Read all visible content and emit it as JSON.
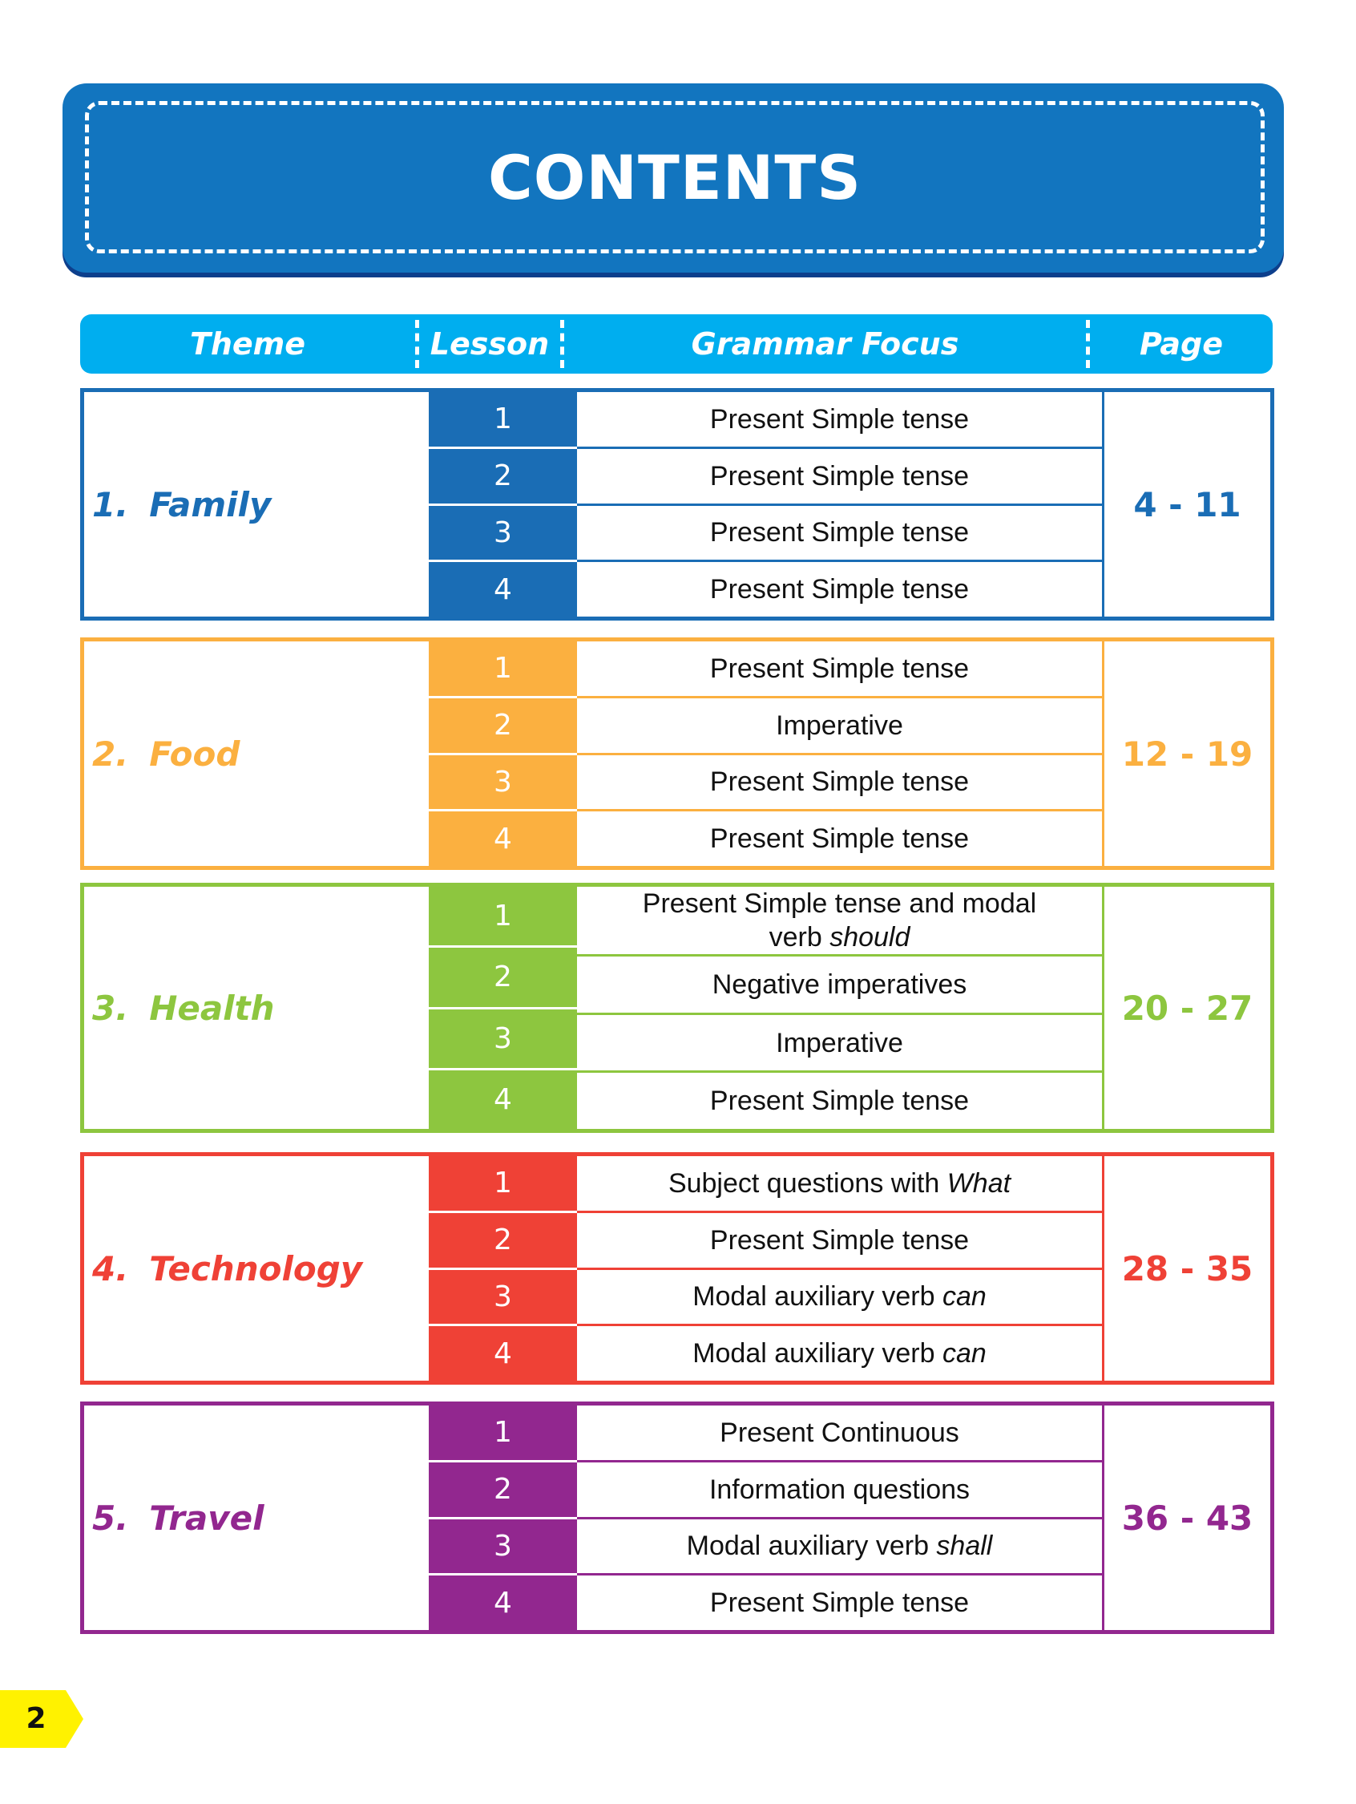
{
  "title": "CONTENTS",
  "columns": {
    "theme": "Theme",
    "lesson": "Lesson",
    "grammar": "Grammar Focus",
    "page": "Page"
  },
  "sections": [
    {
      "num": "1.",
      "theme": "Family",
      "color": "#1a6db5",
      "pages": "4 - 11",
      "lessons": [
        {
          "n": "1",
          "focus": "Present Simple tense"
        },
        {
          "n": "2",
          "focus": "Present Simple tense"
        },
        {
          "n": "3",
          "focus": "Present Simple tense"
        },
        {
          "n": "4",
          "focus": "Present Simple tense"
        }
      ]
    },
    {
      "num": "2.",
      "theme": "Food",
      "color": "#fbb040",
      "pages": "12 - 19",
      "lessons": [
        {
          "n": "1",
          "focus": "Present Simple tense"
        },
        {
          "n": "2",
          "focus": "Imperative"
        },
        {
          "n": "3",
          "focus": "Present Simple tense"
        },
        {
          "n": "4",
          "focus": "Present Simple tense"
        }
      ]
    },
    {
      "num": "3.",
      "theme": "Health",
      "color": "#8dc63f",
      "pages": "20 - 27",
      "lessons": [
        {
          "n": "1",
          "focus": "Present Simple tense and modal",
          "focus2": "verb ",
          "focus_em": "should"
        },
        {
          "n": "2",
          "focus": "Negative imperatives"
        },
        {
          "n": "3",
          "focus": "Imperative"
        },
        {
          "n": "4",
          "focus": "Present Simple tense"
        }
      ]
    },
    {
      "num": "4.",
      "theme": "Technology",
      "color": "#ef4136",
      "pages": "28 - 35",
      "lessons": [
        {
          "n": "1",
          "focus": "Subject questions with ",
          "focus_em": "What"
        },
        {
          "n": "2",
          "focus": "Present Simple tense"
        },
        {
          "n": "3",
          "focus": "Modal auxiliary verb ",
          "focus_em": "can"
        },
        {
          "n": "4",
          "focus": "Modal auxiliary verb ",
          "focus_em": "can"
        }
      ]
    },
    {
      "num": "5.",
      "theme": "Travel",
      "color": "#92278f",
      "pages": "36 - 43",
      "lessons": [
        {
          "n": "1",
          "focus": "Present Continuous"
        },
        {
          "n": "2",
          "focus": "Information questions"
        },
        {
          "n": "3",
          "focus": "Modal auxiliary verb ",
          "focus_em": "shall"
        },
        {
          "n": "4",
          "focus": "Present Simple tense"
        }
      ]
    }
  ],
  "page_number": "2",
  "colors": {
    "banner": "#1275bf",
    "header": "#00aeef",
    "page_tab": "#fff200"
  }
}
